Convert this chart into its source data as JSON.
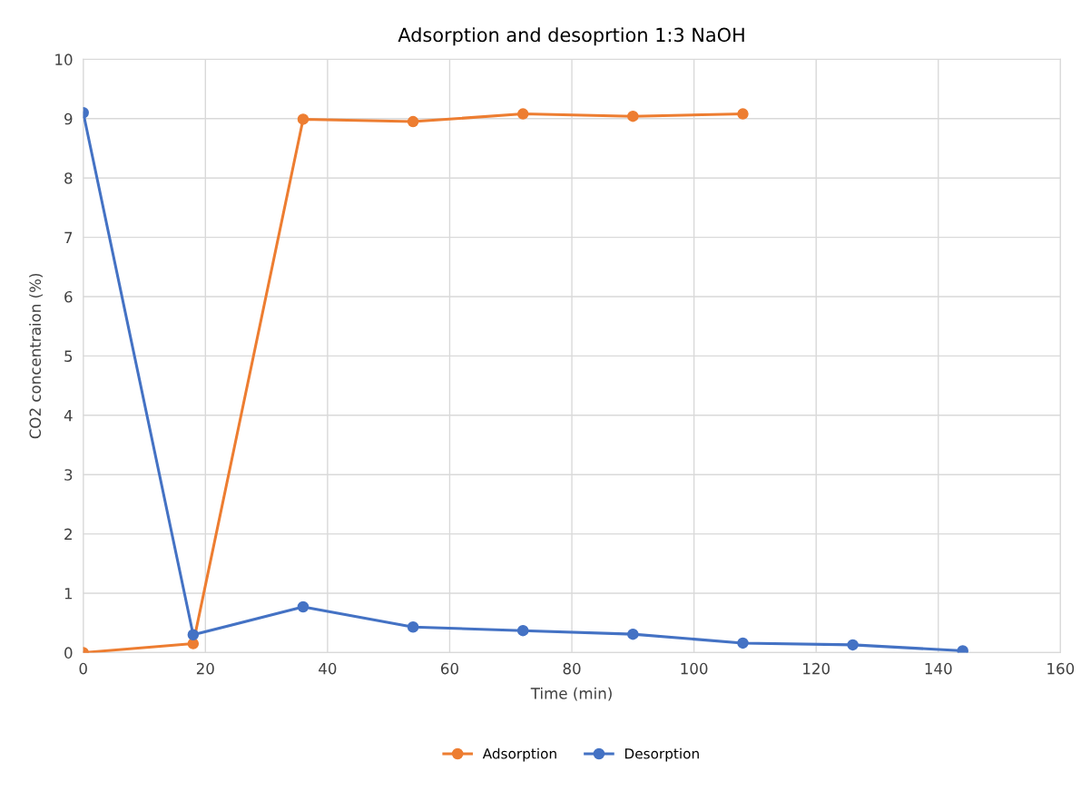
{
  "chart_data": {
    "type": "line",
    "title": "Adsorption and desoprtion 1:3 NaOH",
    "xlabel": "Time (min)",
    "ylabel": "CO2 concentraion (%)",
    "xlim": [
      0,
      160
    ],
    "xticks": [
      0,
      20,
      40,
      60,
      80,
      100,
      120,
      140,
      160
    ],
    "ylim": [
      0,
      10
    ],
    "yticks": [
      0,
      1,
      2,
      3,
      4,
      5,
      6,
      7,
      8,
      9,
      10
    ],
    "grid": true,
    "legend": "bottom",
    "marker": "circle",
    "line_style": "solid",
    "series": [
      {
        "name": "Adsorption",
        "color": "#ed7d31",
        "x": [
          0,
          18,
          36,
          54,
          72,
          90,
          108
        ],
        "values": [
          0,
          0.15,
          8.99,
          8.95,
          9.08,
          9.04,
          9.08
        ]
      },
      {
        "name": "Desorption",
        "color": "#4472c4",
        "x": [
          0,
          18,
          36,
          54,
          72,
          90,
          108,
          126,
          144
        ],
        "values": [
          9.1,
          0.3,
          0.77,
          0.43,
          0.37,
          0.31,
          0.16,
          0.13,
          0.03
        ]
      }
    ]
  }
}
